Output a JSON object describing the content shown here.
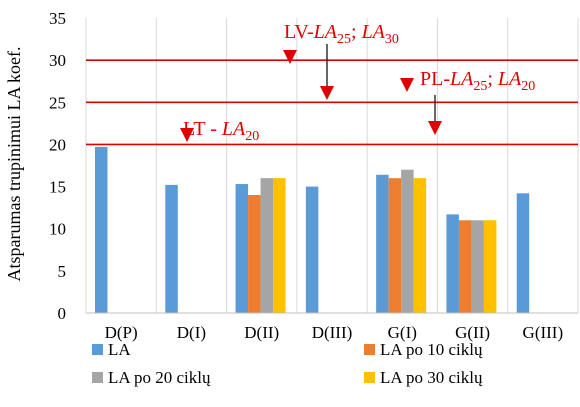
{
  "chart_data": {
    "type": "bar",
    "ylabel": "Atsparumas trupinimui LA koef.",
    "ylim": [
      0,
      35
    ],
    "yticks": [
      0,
      5,
      10,
      15,
      20,
      25,
      30,
      35
    ],
    "grid": "vertical",
    "legend_position": "bottom",
    "categories": [
      "D(P)",
      "D(I)",
      "D(II)",
      "D(III)",
      "G(I)",
      "G(II)",
      "G(III)"
    ],
    "series": [
      {
        "name": "LA",
        "color": "#5B9BD5",
        "values": [
          19.7,
          15.2,
          15.3,
          15.0,
          16.4,
          11.7,
          14.2
        ]
      },
      {
        "name": "LA po 10 ciklų",
        "color": "#ED7D31",
        "values": [
          null,
          null,
          14.0,
          null,
          16.0,
          11.0,
          null
        ]
      },
      {
        "name": "LA po 20 ciklų",
        "color": "#A5A5A5",
        "values": [
          null,
          null,
          16.0,
          null,
          17.0,
          11.0,
          null
        ]
      },
      {
        "name": "LA po 30 ciklų",
        "color": "#FFC000",
        "values": [
          null,
          null,
          16.0,
          null,
          16.0,
          11.0,
          null
        ]
      }
    ],
    "thresholds": [
      {
        "value": 30,
        "color": "#e00000"
      },
      {
        "value": 25,
        "color": "#e00000"
      },
      {
        "value": 20,
        "color": "#e00000"
      }
    ],
    "annotations": [
      {
        "prefix": "LT - ",
        "main": "LA",
        "sub": "20",
        "sep": "",
        "main2": "",
        "sub2": ""
      },
      {
        "prefix": "LV-",
        "main": "LA",
        "sub": "25",
        "sep": "; ",
        "main2": "LA",
        "sub2": "30"
      },
      {
        "prefix": "PL-",
        "main": "LA",
        "sub": "25",
        "sep": "; ",
        "main2": "LA",
        "sub2": "20"
      }
    ]
  }
}
